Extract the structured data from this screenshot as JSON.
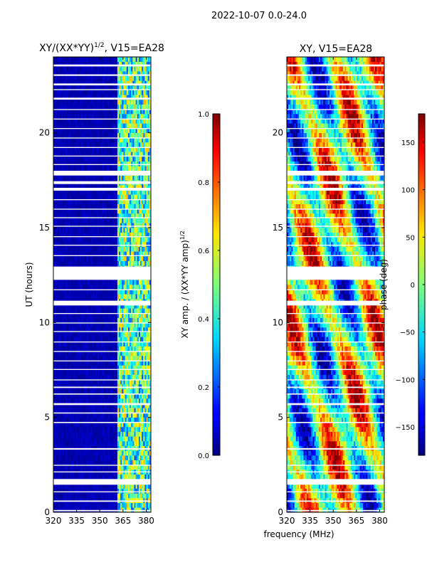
{
  "figure": {
    "suptitle": "2022-10-07 0.0-24.0",
    "shared_xlabel": "frequency (MHz)"
  },
  "chart_data": [
    {
      "type": "heatmap",
      "title": "XY/(XX*YY)",
      "title_exponent": "1/2",
      "title_suffix": ", V15=EA28",
      "xlabel": "",
      "ylabel": "UT (hours)",
      "xlim": [
        320,
        383
      ],
      "ylim": [
        0,
        24
      ],
      "xticks": [
        "320",
        "335",
        "350",
        "365",
        "380"
      ],
      "xtick_values": [
        320,
        335,
        350,
        365,
        380
      ],
      "yticks": [
        "0",
        "5",
        "10",
        "15",
        "20"
      ],
      "ytick_values": [
        0,
        5,
        10,
        15,
        20
      ],
      "colorbar": {
        "label": "XY amp. / (XX*YY amp)",
        "label_exponent": "1/2",
        "range": [
          0.0,
          1.0
        ],
        "ticks": [
          "0.0",
          "0.2",
          "0.4",
          "0.6",
          "0.8",
          "1.0"
        ],
        "tick_values": [
          0.0,
          0.2,
          0.4,
          0.6,
          0.8,
          1.0
        ],
        "colormap": "jet"
      },
      "features": {
        "background_value": 0.02,
        "high_band_start_mhz": 361,
        "high_values_range": [
          0.2,
          0.7
        ]
      }
    },
    {
      "type": "heatmap",
      "title": "XY, V15=EA28",
      "xlabel": "frequency (MHz)",
      "ylabel": "",
      "xlim": [
        320,
        383
      ],
      "ylim": [
        0,
        24
      ],
      "xticks": [
        "320",
        "335",
        "350",
        "365",
        "380"
      ],
      "xtick_values": [
        320,
        335,
        350,
        365,
        380
      ],
      "yticks": [
        "0",
        "5",
        "10",
        "15",
        "20"
      ],
      "ytick_values": [
        0,
        5,
        10,
        15,
        20
      ],
      "colorbar": {
        "label": "phase (deg)",
        "range": [
          -180,
          180
        ],
        "ticks": [
          "−150",
          "−100",
          "−50",
          "0",
          "50",
          "100",
          "150"
        ],
        "tick_values": [
          -150,
          -100,
          -50,
          0,
          50,
          100,
          150
        ],
        "colormap": "jet"
      }
    }
  ],
  "flagged_ut_hours": [
    [
      0.05,
      0.12
    ],
    [
      0.55,
      0.62
    ],
    [
      1.05,
      1.1
    ],
    [
      1.45,
      1.75
    ],
    [
      2.1,
      2.15
    ],
    [
      2.45,
      2.5
    ],
    [
      3.3,
      3.38
    ],
    [
      4.7,
      4.76
    ],
    [
      5.2,
      5.26
    ],
    [
      5.65,
      5.75
    ],
    [
      6.2,
      6.26
    ],
    [
      6.55,
      6.62
    ],
    [
      6.95,
      7.0
    ],
    [
      7.5,
      7.55
    ],
    [
      7.95,
      8.0
    ],
    [
      8.45,
      8.5
    ],
    [
      8.95,
      9.0
    ],
    [
      9.5,
      9.55
    ],
    [
      9.95,
      10.0
    ],
    [
      10.45,
      10.5
    ],
    [
      10.9,
      11.15
    ],
    [
      11.7,
      11.75
    ],
    [
      12.25,
      12.95
    ],
    [
      13.5,
      13.55
    ],
    [
      14.05,
      14.1
    ],
    [
      14.5,
      14.55
    ],
    [
      15.05,
      15.1
    ],
    [
      15.5,
      15.55
    ],
    [
      15.95,
      16.0
    ],
    [
      16.45,
      16.5
    ],
    [
      16.95,
      17.1
    ],
    [
      17.3,
      17.45
    ],
    [
      17.75,
      18.0
    ],
    [
      18.3,
      18.35
    ],
    [
      18.75,
      18.8
    ],
    [
      19.2,
      19.25
    ],
    [
      19.7,
      19.75
    ],
    [
      20.2,
      20.25
    ],
    [
      20.7,
      20.75
    ],
    [
      21.2,
      21.25
    ],
    [
      21.75,
      21.85
    ],
    [
      22.25,
      22.3
    ],
    [
      22.5,
      22.6
    ],
    [
      23.0,
      23.08
    ],
    [
      23.5,
      23.6
    ]
  ]
}
